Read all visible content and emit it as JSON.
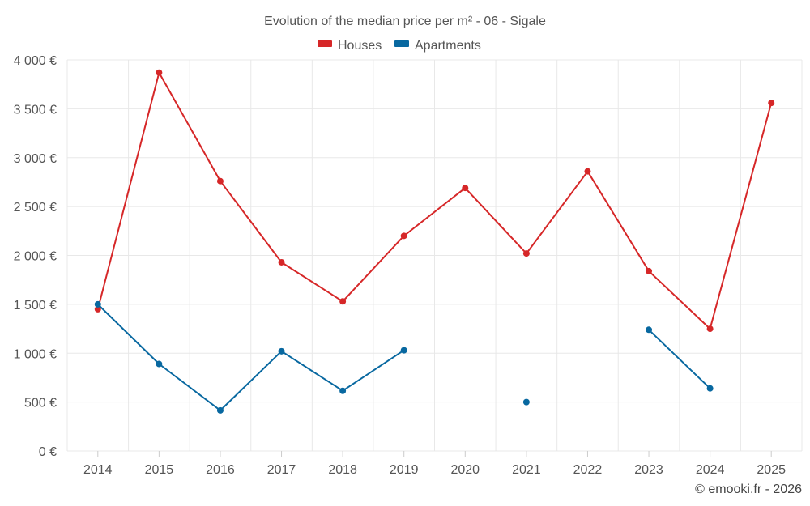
{
  "chart_data": {
    "type": "line",
    "title": "Evolution of the median price per m² - 06 - Sigale",
    "categories": [
      "2014",
      "2015",
      "2016",
      "2017",
      "2018",
      "2019",
      "2020",
      "2021",
      "2022",
      "2023",
      "2024",
      "2025"
    ],
    "series": [
      {
        "name": "Houses",
        "color": "#d62728",
        "values": [
          1450,
          3870,
          2760,
          1930,
          1530,
          2200,
          2690,
          2020,
          2860,
          1840,
          1250,
          3560
        ]
      },
      {
        "name": "Apartments",
        "color": "#0868a0",
        "values": [
          1500,
          890,
          415,
          1020,
          615,
          1030,
          null,
          500,
          null,
          1240,
          640,
          null
        ]
      }
    ],
    "y_ticks": [
      0,
      500,
      1000,
      1500,
      2000,
      2500,
      3000,
      3500,
      4000
    ],
    "y_tick_labels": [
      "0 €",
      "500 €",
      "1 000 €",
      "1 500 €",
      "2 000 €",
      "2 500 €",
      "3 000 €",
      "3 500 €",
      "4 000 €"
    ],
    "ylim": [
      0,
      4000
    ],
    "xlabel": "",
    "ylabel": "",
    "grid": true,
    "legend_position": "top-center"
  },
  "credit": "© emooki.fr - 2026"
}
